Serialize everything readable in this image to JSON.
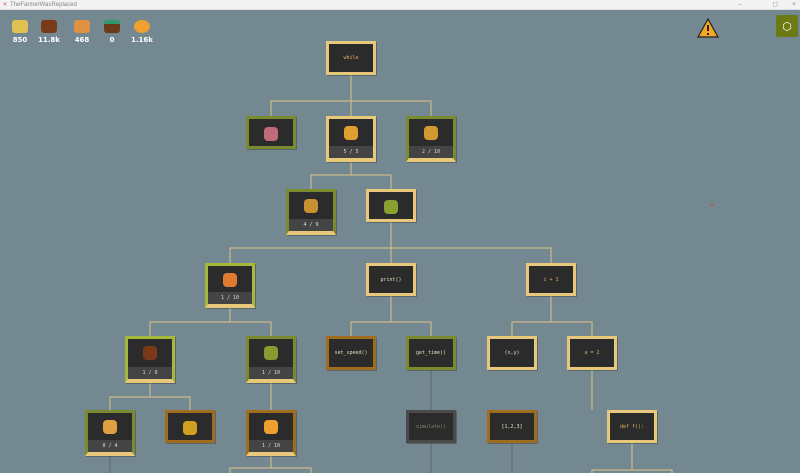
{
  "window": {
    "title": "TheFarmerWasReplaced"
  },
  "resources": [
    {
      "name": "hay",
      "value": "850",
      "color": "#e0c050"
    },
    {
      "name": "wood",
      "value": "11.8k",
      "color": "#7a3a1a"
    },
    {
      "name": "carrot",
      "value": "468",
      "color": "#e09040"
    },
    {
      "name": "water",
      "value": "0",
      "color": "#2a9a6a"
    },
    {
      "name": "pumpkin",
      "value": "1.16k",
      "color": "#f0a030"
    }
  ],
  "colors": {
    "cream": "#e8c87a",
    "olive": "#7a8a2e",
    "lime": "#a8b83a",
    "brown": "#a06c1e",
    "gray": "#4a4a4a"
  },
  "nodes": [
    {
      "label": "while"
    },
    {
      "icon": "cactus-icon"
    },
    {
      "icon": "dinosaur-icon",
      "progress": "5 / 5"
    },
    {
      "icon": "wheat-icon",
      "progress": "2 / 10"
    },
    {
      "icon": "hay-icon",
      "progress": "4 / 9"
    },
    {
      "icon": "bush-icon"
    },
    {
      "icon": "carrot-icon",
      "progress": "1 / 10"
    },
    {
      "label": "print()"
    },
    {
      "label": "i + 1"
    },
    {
      "icon": "watering-icon",
      "progress": "1 / 9"
    },
    {
      "icon": "tree-icon",
      "progress": "1 / 10"
    },
    {
      "label": "set_speed()"
    },
    {
      "label": "get_time()"
    },
    {
      "label": "(x,y)"
    },
    {
      "label": "a = 2"
    },
    {
      "icon": "fertilizer-icon",
      "progress": "0 / 4"
    },
    {
      "icon": "sunflower-icon"
    },
    {
      "icon": "pumpkin-icon",
      "progress": "1 / 10"
    },
    {
      "label": "simulate()"
    },
    {
      "label": "[1,2,3]"
    },
    {
      "label": "def f():"
    }
  ]
}
